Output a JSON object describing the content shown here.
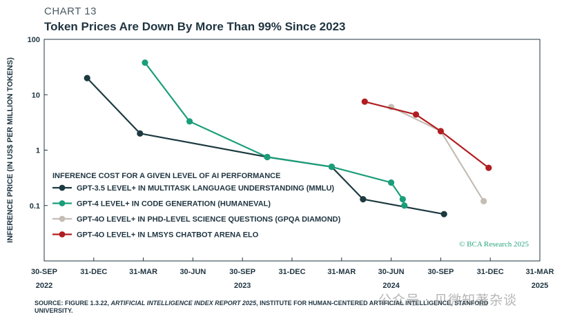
{
  "header": {
    "chart_number": "CHART 13",
    "title": "Token Prices Are Down By More Than 99% Since 2023"
  },
  "chart_data": {
    "type": "line",
    "title": "Token Prices Are Down By More Than 99% Since 2023",
    "ylabel": "INFERENCE PRICE (IN US$ PER MILLION TOKENS)",
    "xlabel": "",
    "yscale": "log",
    "ylim": [
      0.01,
      100
    ],
    "y_ticks": [
      {
        "value": 100,
        "label": "100"
      },
      {
        "value": 10,
        "label": "10"
      },
      {
        "value": 1,
        "label": "1"
      },
      {
        "value": 0.1,
        "label": "0.1"
      }
    ],
    "x_ticks": [
      {
        "month": 0,
        "label": "30-SEP"
      },
      {
        "month": 3,
        "label": "31-DEC"
      },
      {
        "month": 6,
        "label": "31-MAR"
      },
      {
        "month": 9,
        "label": "30-JUN"
      },
      {
        "month": 12,
        "label": "30-SEP"
      },
      {
        "month": 15,
        "label": "31-DEC"
      },
      {
        "month": 18,
        "label": "31-MAR"
      },
      {
        "month": 21,
        "label": "30-JUN"
      },
      {
        "month": 24,
        "label": "30-SEP"
      },
      {
        "month": 27,
        "label": "31-DEC"
      },
      {
        "month": 30,
        "label": "31-MAR"
      }
    ],
    "year_labels": [
      {
        "month": 0,
        "label": "2022"
      },
      {
        "month": 12,
        "label": "2023"
      },
      {
        "month": 21,
        "label": "2024"
      },
      {
        "month": 30,
        "label": "2025"
      }
    ],
    "x_unit": "months since 30-Sep-2022",
    "legend_title": "INFERENCE COST FOR A GIVEN LEVEL OF AI PERFORMANCE",
    "series": [
      {
        "name": "GPT-3.5 LEVEL+ IN MULTITASK LANGUAGE UNDERSTANDING (MMLU)",
        "color": "#1c3a40",
        "points": [
          [
            2.6,
            20
          ],
          [
            5.8,
            2.0
          ],
          [
            13.5,
            0.75
          ],
          [
            17.4,
            0.5
          ],
          [
            19.3,
            0.13
          ],
          [
            24.2,
            0.07
          ]
        ]
      },
      {
        "name": "GPT-4 LEVEL+ IN CODE GENERATION (HUMANEVAL)",
        "color": "#1a9e7a",
        "points": [
          [
            6.1,
            38
          ],
          [
            8.8,
            3.3
          ],
          [
            13.5,
            0.75
          ],
          [
            17.4,
            0.5
          ],
          [
            21.0,
            0.26
          ],
          [
            21.7,
            0.13
          ],
          [
            21.8,
            0.1
          ]
        ]
      },
      {
        "name": "GPT-4O LEVEL+ IN PHD-LEVEL SCIENCE QUESTIONS (GPQA DIAMOND)",
        "color": "#c4bdb4",
        "points": [
          [
            21.0,
            6.0
          ],
          [
            24.0,
            2.2
          ],
          [
            26.6,
            0.12
          ]
        ]
      },
      {
        "name": "GPT-4O LEVEL+ IN LMSYS CHATBOT ARENA ELO",
        "color": "#b01e22",
        "points": [
          [
            19.4,
            7.5
          ],
          [
            22.5,
            4.4
          ],
          [
            24.0,
            2.2
          ],
          [
            26.9,
            0.48
          ]
        ]
      }
    ],
    "annotations": [
      "© BCA Research 2025"
    ]
  },
  "footer": {
    "source_prefix": "SOURCE: FIGURE 1.3.22, ",
    "source_italic": "ARTIFICIAL INTELLIGENCE INDEX REPORT 2025",
    "source_suffix": ", INSTITUTE FOR HUMAN-CENTERED ARTIFICIAL INTELLIGENCE, STANFORD UNIVERSITY.",
    "watermark": "公众号 · 贝微知著杂谈"
  }
}
